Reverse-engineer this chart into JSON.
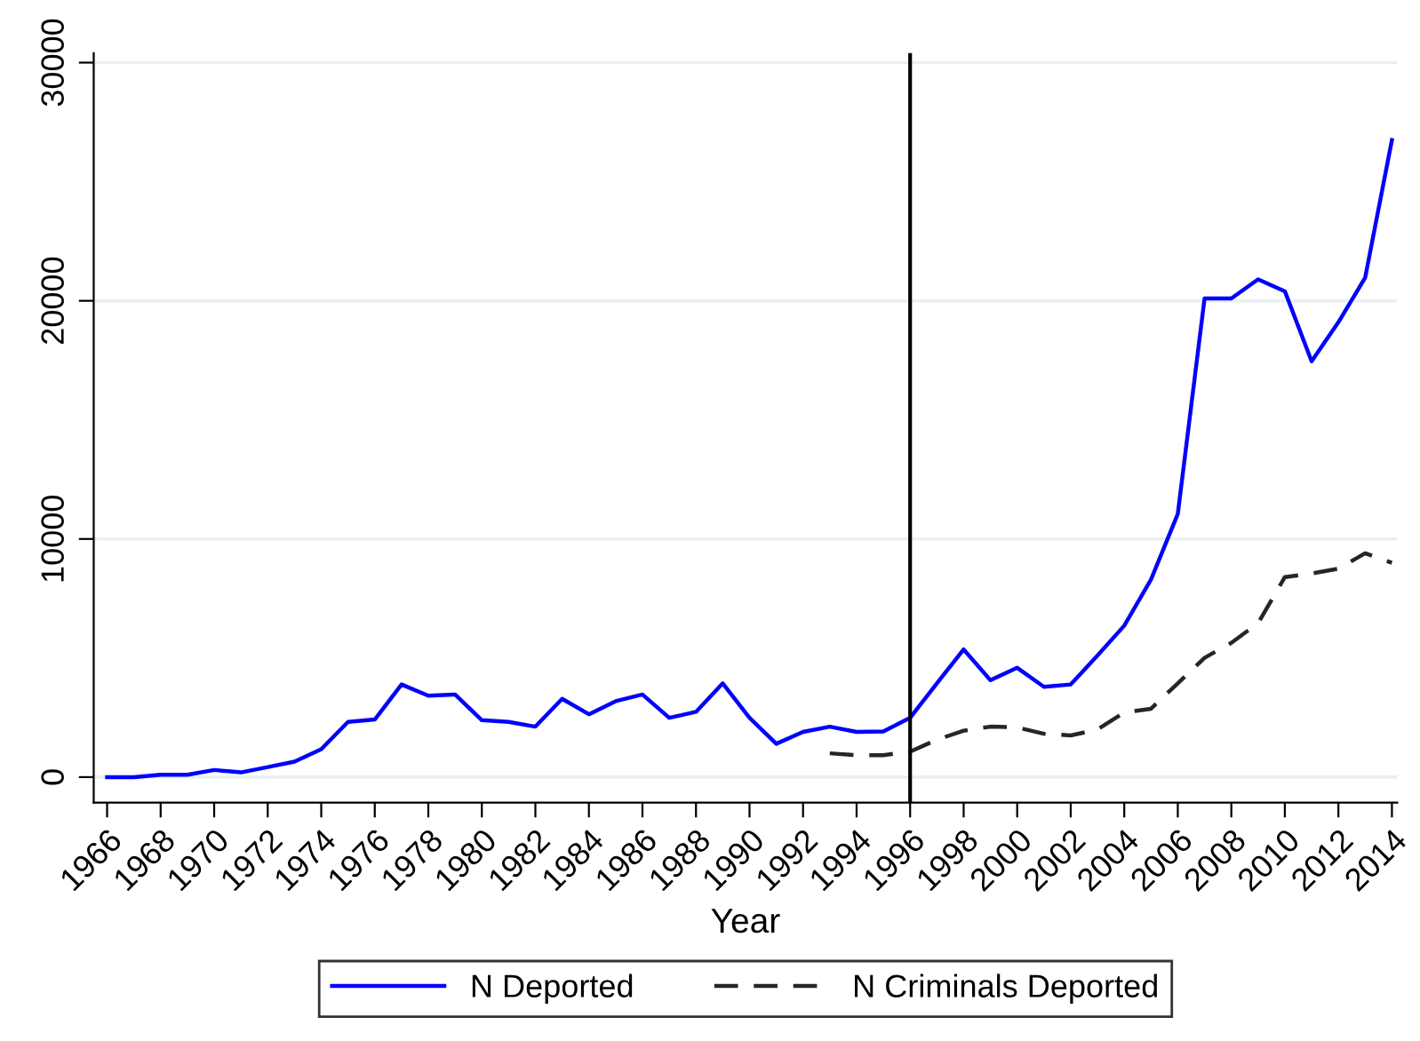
{
  "chart_data": {
    "type": "line",
    "xlabel": "Year",
    "x": [
      1966,
      1967,
      1968,
      1969,
      1970,
      1971,
      1972,
      1973,
      1974,
      1975,
      1976,
      1977,
      1978,
      1979,
      1980,
      1981,
      1982,
      1983,
      1984,
      1985,
      1986,
      1987,
      1988,
      1989,
      1990,
      1991,
      1992,
      1993,
      1994,
      1995,
      1996,
      1997,
      1998,
      1999,
      2000,
      2001,
      2002,
      2003,
      2004,
      2005,
      2006,
      2007,
      2008,
      2009,
      2010,
      2011,
      2012,
      2013,
      2014
    ],
    "series": [
      {
        "name": "N Deported",
        "color": "#0000ff",
        "line_style": "solid",
        "values": [
          0,
          0,
          100,
          100,
          300,
          200,
          420,
          650,
          1170,
          2320,
          2420,
          3890,
          3420,
          3470,
          2390,
          2320,
          2120,
          3290,
          2640,
          3190,
          3470,
          2490,
          2740,
          3940,
          2490,
          1400,
          1900,
          2120,
          1900,
          1920,
          2490,
          3940,
          5360,
          4070,
          4590,
          3790,
          3890,
          5110,
          6360,
          8300,
          11050,
          20100,
          20100,
          20900,
          20400,
          17460,
          19100,
          20970,
          26750
        ]
      },
      {
        "name": "N Criminals Deported",
        "color": "#262626",
        "line_style": "dashed",
        "values": [
          null,
          null,
          null,
          null,
          null,
          null,
          null,
          null,
          null,
          null,
          null,
          null,
          null,
          null,
          null,
          null,
          null,
          null,
          null,
          null,
          null,
          null,
          null,
          null,
          null,
          null,
          null,
          1000,
          920,
          920,
          1070,
          1570,
          1950,
          2120,
          2090,
          1820,
          1750,
          2000,
          2720,
          2870,
          3940,
          5010,
          5640,
          6460,
          8400,
          8550,
          8750,
          9400,
          9000
        ]
      }
    ],
    "xlim": [
      1965.5,
      2014.2
    ],
    "xticks": [
      1966,
      1968,
      1970,
      1972,
      1974,
      1976,
      1978,
      1980,
      1982,
      1984,
      1986,
      1988,
      1990,
      1992,
      1994,
      1996,
      1998,
      2000,
      2002,
      2004,
      2006,
      2008,
      2010,
      2012,
      2014
    ],
    "ylim": [
      -1070,
      30400
    ],
    "yticks": [
      0,
      10000,
      20000,
      30000
    ],
    "ref_lines": [
      {
        "axis": "x",
        "value": 1996,
        "color": "#000000",
        "line_style": "solid"
      }
    ],
    "grid": "y",
    "legend": "bottom"
  }
}
